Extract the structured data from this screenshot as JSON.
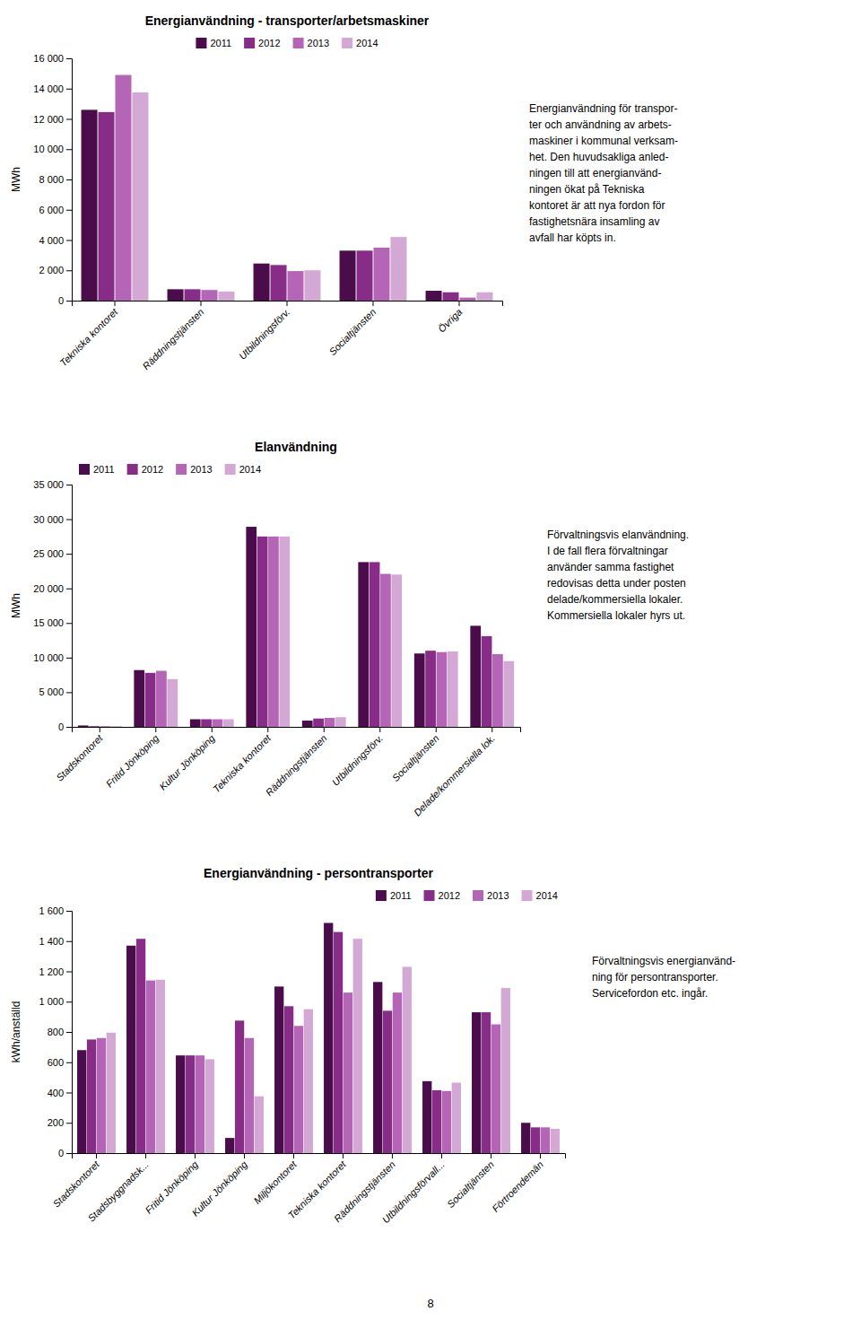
{
  "chart_data": [
    {
      "type": "bar",
      "title": "Energianvändning - transporter/arbetsmaskiner",
      "ylabel": "MWh",
      "categories": [
        "Tekniska kontoret",
        "Räddningstjänsten",
        "Utbildningsförv.",
        "Socialtjänsten",
        "Övriga"
      ],
      "series": [
        {
          "name": "2011",
          "color": "#4B0C4B",
          "values": [
            12600,
            750,
            2450,
            3300,
            650
          ]
        },
        {
          "name": "2012",
          "color": "#872C87",
          "values": [
            12450,
            750,
            2350,
            3300,
            550
          ]
        },
        {
          "name": "2013",
          "color": "#B565B5",
          "values": [
            14900,
            700,
            1950,
            3500,
            200
          ]
        },
        {
          "name": "2014",
          "color": "#D4A8D4",
          "values": [
            13750,
            600,
            2000,
            4200,
            550
          ]
        }
      ],
      "ylim": [
        0,
        16000
      ],
      "yticks": [
        0,
        {
          "value": 2000,
          "label": "2 000"
        },
        {
          "value": 4000,
          "label": "4 000"
        },
        {
          "value": 6000,
          "label": "6 000"
        },
        {
          "value": 8000,
          "label": "8 000"
        },
        {
          "value": 10000,
          "label": "10 000"
        },
        {
          "value": 12000,
          "label": "12 000"
        },
        {
          "value": 14000,
          "label": "14 000"
        },
        {
          "value": 16000,
          "label": "16 000"
        }
      ],
      "grid": false,
      "legend": "upper center",
      "annotations": [
        "Energianvändning för transpor-",
        "ter och användning av arbets-",
        "maskiner i kommunal verksam-",
        "het. Den huvudsakliga anled-",
        "ningen till att energianvänd-",
        "ningen ökat på Tekniska",
        "kontoret är att nya fordon för",
        "fastighetsnära insamling av",
        "avfall har köpts in."
      ]
    },
    {
      "type": "bar",
      "title": "Elanvändning",
      "ylabel": "MWh",
      "categories": [
        "Stadskontoret",
        "Fritid Jönköping",
        "Kultur Jönköping",
        "Tekniska kontoret",
        "Räddningstjänsten",
        "Utbildningsförv.",
        "Socialtjänsten",
        "Delade/kommersiella lok."
      ],
      "series": [
        {
          "name": "2011",
          "color": "#4B0C4B",
          "values": [
            200,
            8200,
            1100,
            28900,
            900,
            23800,
            10600,
            14600
          ]
        },
        {
          "name": "2012",
          "color": "#872C87",
          "values": [
            100,
            7800,
            1100,
            27500,
            1200,
            23800,
            11000,
            13100
          ]
        },
        {
          "name": "2013",
          "color": "#B565B5",
          "values": [
            100,
            8100,
            1100,
            27500,
            1300,
            22100,
            10800,
            10500
          ]
        },
        {
          "name": "2014",
          "color": "#D4A8D4",
          "values": [
            100,
            6900,
            1100,
            27500,
            1400,
            22000,
            10900,
            9500
          ]
        }
      ],
      "ylim": [
        0,
        35000
      ],
      "yticks": [
        0,
        {
          "value": 5000,
          "label": "5 000"
        },
        {
          "value": 10000,
          "label": "10 000"
        },
        {
          "value": 15000,
          "label": "15 000"
        },
        {
          "value": 20000,
          "label": "20 000"
        },
        {
          "value": 25000,
          "label": "25 000"
        },
        {
          "value": 30000,
          "label": "30 000"
        },
        {
          "value": 35000,
          "label": "35 000"
        }
      ],
      "grid": false,
      "legend": "upper left",
      "annotations": [
        "Förvaltningsvis elanvändning.",
        "I de fall flera förvaltningar",
        "använder samma fastighet",
        "redovisas detta under posten",
        "delade/kommersiella lokaler.",
        "Kommersiella lokaler hyrs ut."
      ]
    },
    {
      "type": "bar",
      "title": "Energianvändning - persontransporter",
      "ylabel": "kWh/anställd",
      "categories": [
        "Stadskontoret",
        "Stadsbyggnadsk...",
        "Fritid Jönköping",
        "Kultur Jönköping",
        "Miljökontoret",
        "Tekniska kontoret",
        "Räddningstjänsten",
        "Utbildningsförvall...",
        "Socialtjänsten",
        "Förtroendemän"
      ],
      "series": [
        {
          "name": "2011",
          "color": "#4B0C4B",
          "values": [
            680,
            1370,
            645,
            100,
            1100,
            1520,
            1130,
            475,
            930,
            200
          ]
        },
        {
          "name": "2012",
          "color": "#872C87",
          "values": [
            750,
            1415,
            645,
            875,
            970,
            1460,
            940,
            415,
            930,
            170
          ]
        },
        {
          "name": "2013",
          "color": "#B565B5",
          "values": [
            760,
            1140,
            645,
            760,
            840,
            1060,
            1060,
            410,
            850,
            170
          ]
        },
        {
          "name": "2014",
          "color": "#D4A8D4",
          "values": [
            795,
            1145,
            620,
            375,
            950,
            1415,
            1230,
            465,
            1090,
            160
          ]
        }
      ],
      "ylim": [
        0,
        1600
      ],
      "yticks": [
        0,
        200,
        400,
        600,
        800,
        {
          "value": 1000,
          "label": "1 000"
        },
        {
          "value": 1200,
          "label": "1 200"
        },
        {
          "value": 1400,
          "label": "1 400"
        },
        {
          "value": 1600,
          "label": "1 600"
        }
      ],
      "grid": false,
      "legend": "upper right",
      "annotations": [
        "Förvaltningsvis energianvänd-",
        "ning för persontransporter.",
        "Servicefordon etc. ingår."
      ]
    }
  ],
  "page_number": "8"
}
